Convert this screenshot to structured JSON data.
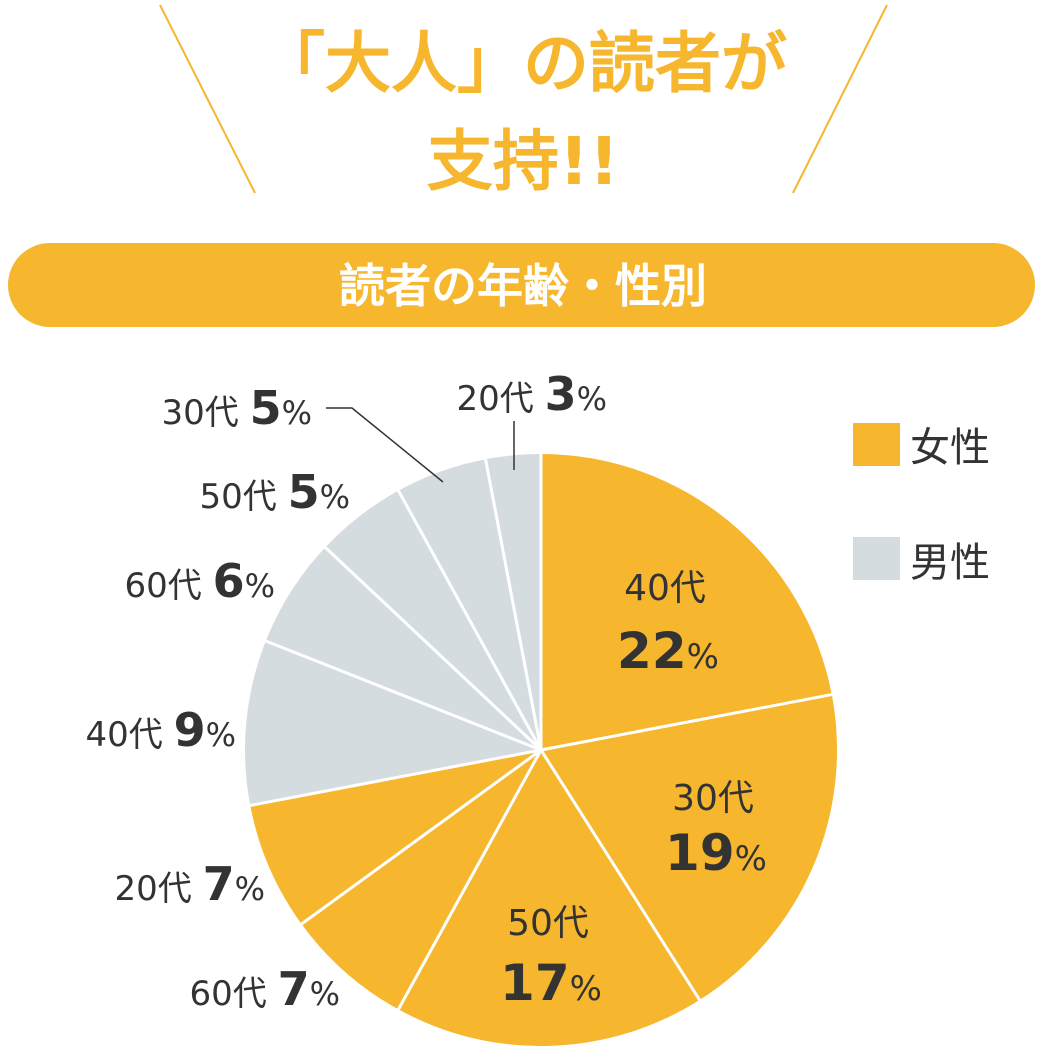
{
  "headline": {
    "line1": "「大人」の読者が",
    "line2": "支持!!"
  },
  "banner": {
    "title": "読者の年齢・性別"
  },
  "colors": {
    "accent": "#f6b72e",
    "female": "#f6b72e",
    "male": "#d5dce0",
    "text": "#333333",
    "white": "#ffffff"
  },
  "legend": [
    {
      "label": "女性",
      "color_key": "female"
    },
    {
      "label": "男性",
      "color_key": "male"
    }
  ],
  "chart_data": {
    "type": "pie",
    "title": "読者の年齢・性別",
    "legend_position": "right",
    "slices": [
      {
        "group": "女性",
        "age": "40代",
        "value": 22,
        "pct": "22%"
      },
      {
        "group": "女性",
        "age": "30代",
        "value": 19,
        "pct": "19%"
      },
      {
        "group": "女性",
        "age": "50代",
        "value": 17,
        "pct": "17%"
      },
      {
        "group": "女性",
        "age": "60代",
        "value": 7,
        "pct": "7%"
      },
      {
        "group": "女性",
        "age": "20代",
        "value": 7,
        "pct": "7%"
      },
      {
        "group": "男性",
        "age": "40代",
        "value": 9,
        "pct": "9%"
      },
      {
        "group": "男性",
        "age": "60代",
        "value": 6,
        "pct": "6%"
      },
      {
        "group": "男性",
        "age": "50代",
        "value": 5,
        "pct": "5%"
      },
      {
        "group": "男性",
        "age": "30代",
        "value": 5,
        "pct": "5%"
      },
      {
        "group": "男性",
        "age": "20代",
        "value": 3,
        "pct": "3%"
      }
    ]
  }
}
